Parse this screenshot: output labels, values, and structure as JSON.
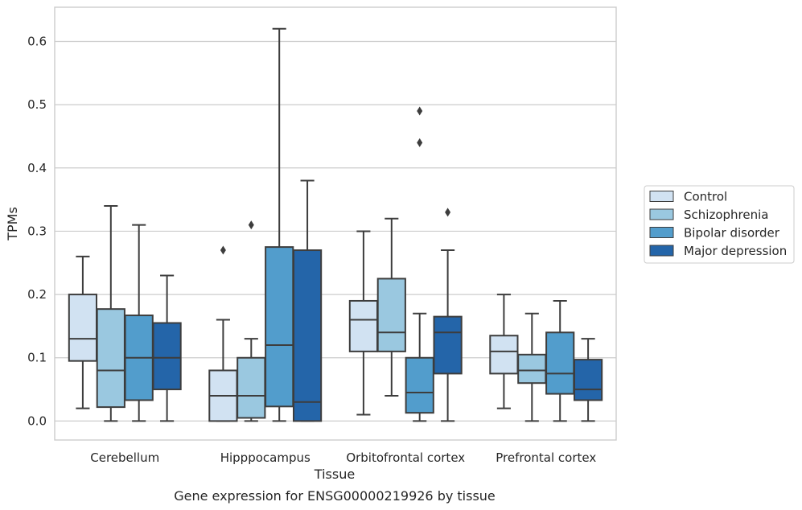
{
  "chart_data": {
    "type": "box",
    "xlabel": "Tissue",
    "ylabel": "TPMs",
    "caption": "Gene expression for ENSG00000219926 by tissue",
    "ylim": [
      -0.03,
      0.654
    ],
    "yticks": [
      "0.0",
      "0.1",
      "0.2",
      "0.3",
      "0.4",
      "0.5",
      "0.6"
    ],
    "ytick_values": [
      0,
      0.1,
      0.2,
      0.3,
      0.4,
      0.5,
      0.6
    ],
    "grid": true,
    "legend_position": "right",
    "categories": [
      "Cerebellum",
      "Hipppocampus",
      "Orbitofrontal cortex",
      "Prefrontal cortex"
    ],
    "series": [
      {
        "name": "Control",
        "color": "#d1e2f2",
        "boxes": [
          {
            "whislo": 0.02,
            "q1": 0.095,
            "med": 0.13,
            "q3": 0.2,
            "whishi": 0.26,
            "fliers": []
          },
          {
            "whislo": 0.0,
            "q1": 0.0,
            "med": 0.04,
            "q3": 0.08,
            "whishi": 0.16,
            "fliers": [
              0.27
            ]
          },
          {
            "whislo": 0.01,
            "q1": 0.11,
            "med": 0.16,
            "q3": 0.19,
            "whishi": 0.3,
            "fliers": []
          },
          {
            "whislo": 0.02,
            "q1": 0.075,
            "med": 0.11,
            "q3": 0.135,
            "whishi": 0.2,
            "fliers": []
          }
        ]
      },
      {
        "name": "Schizophrenia",
        "color": "#9ac8e0",
        "boxes": [
          {
            "whislo": 0.0,
            "q1": 0.022,
            "med": 0.08,
            "q3": 0.177,
            "whishi": 0.34,
            "fliers": []
          },
          {
            "whislo": 0.0,
            "q1": 0.005,
            "med": 0.04,
            "q3": 0.1,
            "whishi": 0.13,
            "fliers": [
              0.31
            ]
          },
          {
            "whislo": 0.04,
            "q1": 0.11,
            "med": 0.14,
            "q3": 0.225,
            "whishi": 0.32,
            "fliers": []
          },
          {
            "whislo": 0.0,
            "q1": 0.06,
            "med": 0.08,
            "q3": 0.105,
            "whishi": 0.17,
            "fliers": []
          }
        ]
      },
      {
        "name": "Bipolar disorder",
        "color": "#529dcc",
        "boxes": [
          {
            "whislo": 0.0,
            "q1": 0.033,
            "med": 0.1,
            "q3": 0.167,
            "whishi": 0.31,
            "fliers": []
          },
          {
            "whislo": 0.0,
            "q1": 0.023,
            "med": 0.12,
            "q3": 0.275,
            "whishi": 0.62,
            "fliers": []
          },
          {
            "whislo": 0.0,
            "q1": 0.013,
            "med": 0.045,
            "q3": 0.1,
            "whishi": 0.17,
            "fliers": [
              0.44,
              0.49
            ]
          },
          {
            "whislo": 0.0,
            "q1": 0.043,
            "med": 0.075,
            "q3": 0.14,
            "whishi": 0.19,
            "fliers": []
          }
        ]
      },
      {
        "name": "Major depression",
        "color": "#2465a9",
        "boxes": [
          {
            "whislo": 0.0,
            "q1": 0.05,
            "med": 0.1,
            "q3": 0.155,
            "whishi": 0.23,
            "fliers": []
          },
          {
            "whislo": 0.0,
            "q1": 0.0,
            "med": 0.03,
            "q3": 0.27,
            "whishi": 0.38,
            "fliers": []
          },
          {
            "whislo": 0.0,
            "q1": 0.075,
            "med": 0.14,
            "q3": 0.165,
            "whishi": 0.27,
            "fliers": [
              0.33
            ]
          },
          {
            "whislo": 0.0,
            "q1": 0.033,
            "med": 0.05,
            "q3": 0.097,
            "whishi": 0.13,
            "fliers": []
          }
        ]
      }
    ]
  }
}
